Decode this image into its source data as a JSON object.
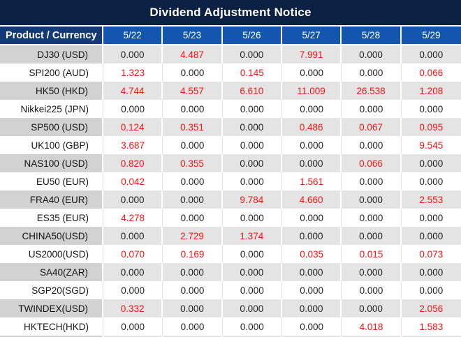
{
  "title": "Dividend Adjustment Notice",
  "chart_data": {
    "type": "table",
    "title": "Dividend Adjustment Notice",
    "product_header": "Product / Currency",
    "columns": [
      "5/22",
      "5/23",
      "5/26",
      "5/27",
      "5/28",
      "5/29"
    ],
    "rows": [
      {
        "product": "DJ30 (USD)",
        "values": [
          "0.000",
          "4.487",
          "0.000",
          "7.991",
          "0.000",
          "0.000"
        ],
        "red": [
          false,
          true,
          false,
          true,
          false,
          false
        ]
      },
      {
        "product": "SPI200 (AUD)",
        "values": [
          "1.323",
          "0.000",
          "0.145",
          "0.000",
          "0.000",
          "0.066"
        ],
        "red": [
          true,
          false,
          true,
          false,
          false,
          true
        ]
      },
      {
        "product": "HK50 (HKD)",
        "values": [
          "4.744",
          "4.557",
          "6.610",
          "11.009",
          "26.538",
          "1.208"
        ],
        "red": [
          true,
          true,
          true,
          true,
          true,
          true
        ]
      },
      {
        "product": "Nikkei225 (JPN)",
        "values": [
          "0.000",
          "0.000",
          "0.000",
          "0.000",
          "0.000",
          "0.000"
        ],
        "red": [
          false,
          false,
          false,
          false,
          false,
          false
        ]
      },
      {
        "product": "SP500 (USD)",
        "values": [
          "0.124",
          "0.351",
          "0.000",
          "0.486",
          "0.067",
          "0.095"
        ],
        "red": [
          true,
          true,
          false,
          true,
          true,
          true
        ]
      },
      {
        "product": "UK100 (GBP)",
        "values": [
          "3.687",
          "0.000",
          "0.000",
          "0.000",
          "0.000",
          "9.545"
        ],
        "red": [
          true,
          false,
          false,
          false,
          false,
          true
        ]
      },
      {
        "product": "NAS100 (USD)",
        "values": [
          "0.820",
          "0.355",
          "0.000",
          "0.000",
          "0.066",
          "0.000"
        ],
        "red": [
          true,
          true,
          false,
          false,
          true,
          false
        ]
      },
      {
        "product": "EU50 (EUR)",
        "values": [
          "0.042",
          "0.000",
          "0.000",
          "1.561",
          "0.000",
          "0.000"
        ],
        "red": [
          true,
          false,
          false,
          true,
          false,
          false
        ]
      },
      {
        "product": "FRA40 (EUR)",
        "values": [
          "0.000",
          "0.000",
          "9.784",
          "4.660",
          "0.000",
          "2.553"
        ],
        "red": [
          false,
          false,
          true,
          true,
          false,
          true
        ]
      },
      {
        "product": "ES35 (EUR)",
        "values": [
          "4.278",
          "0.000",
          "0.000",
          "0.000",
          "0.000",
          "0.000"
        ],
        "red": [
          true,
          false,
          false,
          false,
          false,
          false
        ]
      },
      {
        "product": "CHINA50(USD)",
        "values": [
          "0.000",
          "2.729",
          "1.374",
          "0.000",
          "0.000",
          "0.000"
        ],
        "red": [
          false,
          true,
          true,
          false,
          false,
          false
        ]
      },
      {
        "product": "US2000(USD)",
        "values": [
          "0.070",
          "0.169",
          "0.000",
          "0.035",
          "0.015",
          "0.073"
        ],
        "red": [
          true,
          true,
          false,
          true,
          true,
          true
        ]
      },
      {
        "product": "SA40(ZAR)",
        "values": [
          "0.000",
          "0.000",
          "0.000",
          "0.000",
          "0.000",
          "0.000"
        ],
        "red": [
          false,
          false,
          false,
          false,
          false,
          false
        ]
      },
      {
        "product": "SGP20(SGD)",
        "values": [
          "0.000",
          "0.000",
          "0.000",
          "0.000",
          "0.000",
          "0.000"
        ],
        "red": [
          false,
          false,
          false,
          false,
          false,
          false
        ]
      },
      {
        "product": "TWINDEX(USD)",
        "values": [
          "0.332",
          "0.000",
          "0.000",
          "0.000",
          "0.000",
          "2.056"
        ],
        "red": [
          true,
          false,
          false,
          false,
          false,
          true
        ]
      },
      {
        "product": "HKTECH(HKD)",
        "values": [
          "0.000",
          "0.000",
          "0.000",
          "0.000",
          "4.018",
          "1.583"
        ],
        "red": [
          false,
          false,
          false,
          false,
          true,
          true
        ]
      }
    ],
    "layout_hints": {
      "first_row_stripe": "gray",
      "value_alignment": "center",
      "product_alignment": "right"
    }
  },
  "colors": {
    "title_bg": "#0a2143",
    "header_product_bg": "#133a77",
    "header_date_bg": "#1257ad",
    "row_gray_product": "#d2d2d2",
    "row_gray_value": "#e4e4e4",
    "row_white": "#ffffff",
    "value_red": "#fa1212",
    "value_black": "#1f1f1f",
    "header_text": "#ffffff"
  }
}
